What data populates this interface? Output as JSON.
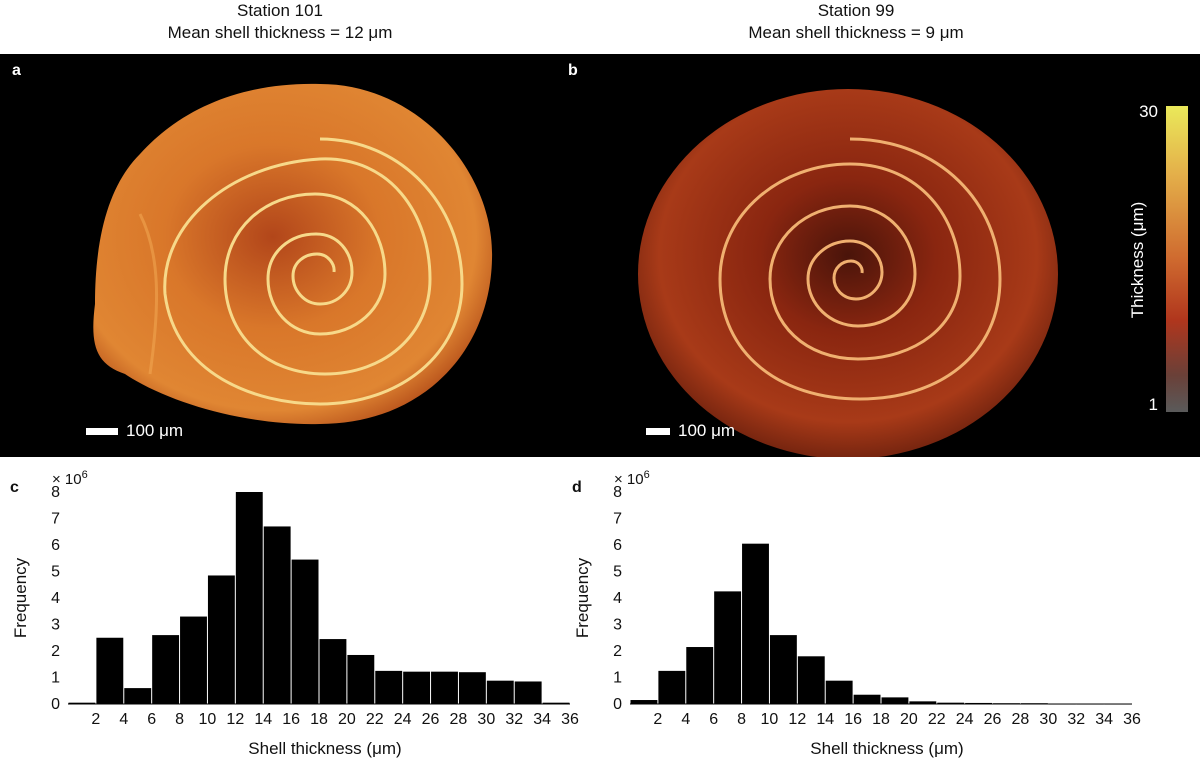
{
  "figure": {
    "station_a_title": "Station 101",
    "station_a_subtitle": "Mean shell thickness = 12 μm",
    "station_b_title": "Station 99",
    "station_b_subtitle": "Mean shell thickness = 9 μm",
    "panel_a": "a",
    "panel_b": "b",
    "panel_c": "c",
    "panel_d": "d",
    "scale_label_a": "100 μm",
    "scale_label_b": "100 μm",
    "colorbar_max": "30",
    "colorbar_min": "1",
    "colorbar_label": "Thickness (μm)",
    "colors": {
      "background": "#000000",
      "shell_a_base": "#d86f22",
      "shell_b_base": "#9e2d12",
      "suture": "#f7d98a"
    }
  },
  "chart_data": [
    {
      "type": "bar",
      "panel": "c",
      "multiplier_label": "× 10",
      "multiplier_exp": "6",
      "xlabel": "Shell thickness (μm)",
      "ylabel": "Frequency",
      "ylim": [
        0,
        8
      ],
      "yticks": [
        "0",
        "1",
        "2",
        "3",
        "4",
        "5",
        "6",
        "7",
        "8"
      ],
      "xticks": [
        "2",
        "4",
        "6",
        "8",
        "10",
        "12",
        "14",
        "16",
        "18",
        "20",
        "22",
        "24",
        "26",
        "28",
        "30",
        "32",
        "34",
        "36"
      ],
      "values": [
        0.05,
        2.5,
        0.6,
        2.6,
        3.3,
        4.85,
        8.0,
        6.7,
        5.45,
        2.45,
        1.85,
        1.25,
        1.22,
        1.22,
        1.2,
        0.88,
        0.85,
        0.05
      ]
    },
    {
      "type": "bar",
      "panel": "d",
      "multiplier_label": "× 10",
      "multiplier_exp": "6",
      "xlabel": "Shell thickness (μm)",
      "ylabel": "Frequency",
      "ylim": [
        0,
        8
      ],
      "yticks": [
        "0",
        "1",
        "2",
        "3",
        "4",
        "5",
        "6",
        "7",
        "8"
      ],
      "xticks": [
        "2",
        "4",
        "6",
        "8",
        "10",
        "12",
        "14",
        "16",
        "18",
        "20",
        "22",
        "24",
        "26",
        "28",
        "30",
        "32",
        "34",
        "36"
      ],
      "values": [
        0.15,
        1.25,
        2.15,
        4.25,
        6.05,
        2.6,
        1.8,
        0.88,
        0.35,
        0.25,
        0.1,
        0.05,
        0.04,
        0.03,
        0.03,
        0.01,
        0.01,
        0.01
      ]
    }
  ]
}
